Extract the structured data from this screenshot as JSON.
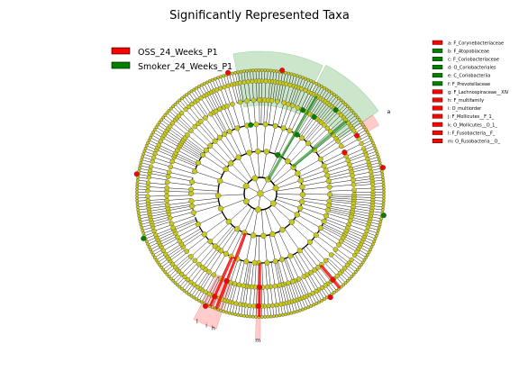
{
  "chart_data": {
    "type": "cladogram",
    "title": "Significantly Represented Taxa",
    "classes": [
      {
        "name": "OSS_24_Weeks_P1",
        "color": "#ff0000"
      },
      {
        "name": "Smoker_24_Weeks_P1",
        "color": "#008000"
      }
    ],
    "default_node_color": "#c8c81e",
    "taxa": [
      {
        "key": "a",
        "label": "a: F_Corynebacteriaceae",
        "class": "OSS_24_Weeks_P1"
      },
      {
        "key": "b",
        "label": "b: F_Atopobiaceae",
        "class": "Smoker_24_Weeks_P1"
      },
      {
        "key": "c",
        "label": "c: F_Coriobacteriaceae",
        "class": "Smoker_24_Weeks_P1"
      },
      {
        "key": "d",
        "label": "d: O_Coriobacteriales",
        "class": "Smoker_24_Weeks_P1"
      },
      {
        "key": "e",
        "label": "e: C_Coriobacteriia",
        "class": "Smoker_24_Weeks_P1"
      },
      {
        "key": "f",
        "label": "f: F_Prevotellaceae",
        "class": "Smoker_24_Weeks_P1"
      },
      {
        "key": "g",
        "label": "g: F_Lachnospiraceae__XIV",
        "class": "OSS_24_Weeks_P1"
      },
      {
        "key": "h",
        "label": "h: F_multifamily",
        "class": "OSS_24_Weeks_P1"
      },
      {
        "key": "i",
        "label": "i: O_multiorder",
        "class": "OSS_24_Weeks_P1"
      },
      {
        "key": "j",
        "label": "j: F_Mollicutes__F_1_",
        "class": "OSS_24_Weeks_P1"
      },
      {
        "key": "k",
        "label": "k: O_Mollicutes__O_1_",
        "class": "OSS_24_Weeks_P1"
      },
      {
        "key": "l",
        "label": "l: F_Fusobacteria__F_",
        "class": "OSS_24_Weeks_P1"
      },
      {
        "key": "m",
        "label": "m: O_Fusobacteria__O_",
        "class": "OSS_24_Weeks_P1"
      }
    ],
    "ring_levels": [
      "phylum",
      "class",
      "order",
      "family",
      "genus",
      "species"
    ],
    "grid": false,
    "legend_placement": "top-left"
  },
  "colors": {
    "OSS": "#ff0000",
    "Smoker": "#008000",
    "node": "#c8c81e",
    "edge": "#000000"
  }
}
